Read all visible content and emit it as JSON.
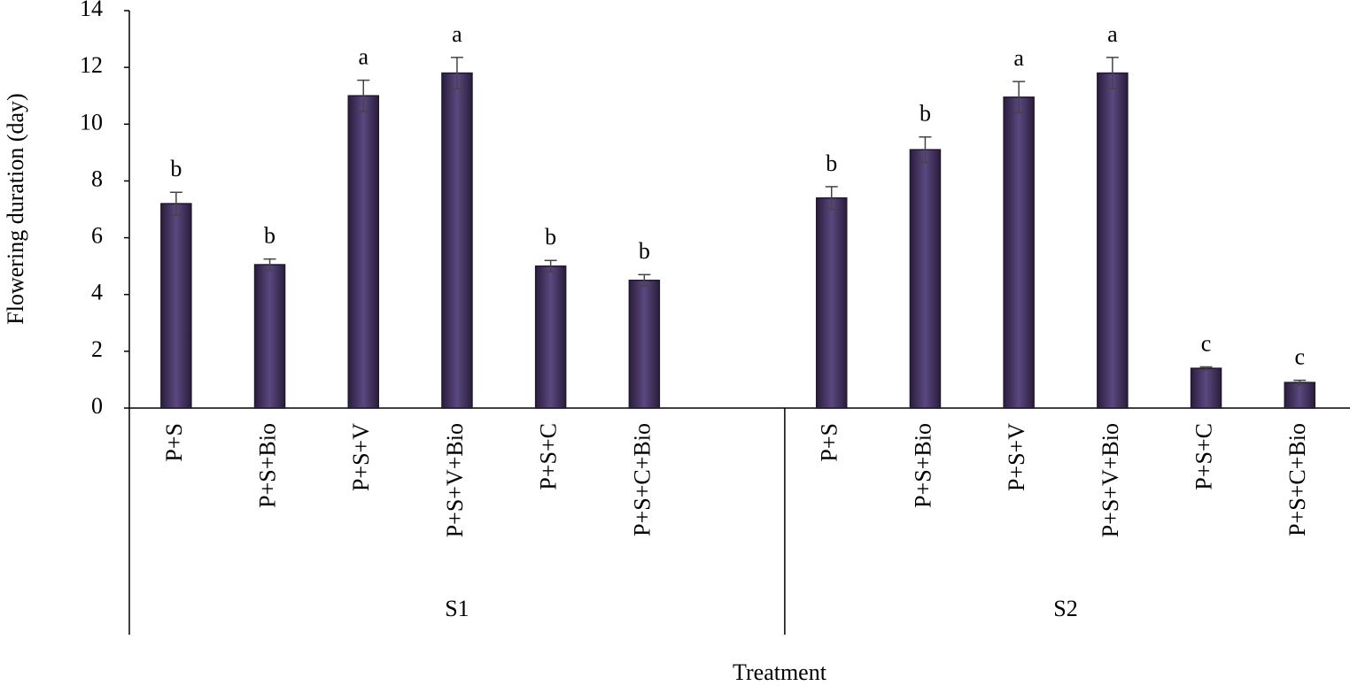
{
  "chart_data": {
    "type": "bar",
    "y_label": "Flowering duration (day)",
    "x_label": "Treatment",
    "ylim": [
      0,
      14
    ],
    "yticks": [
      0,
      2,
      4,
      6,
      8,
      10,
      12,
      14
    ],
    "color": "#4a3a68",
    "groups": [
      {
        "label": "S1",
        "categories": [
          "P+S",
          "P+S+Bio",
          "P+S+V",
          "P+S+V+Bio",
          "P+S+C",
          "P+S+C+Bio"
        ],
        "values": [
          7.2,
          5.05,
          11.0,
          11.8,
          5.0,
          4.5
        ],
        "errors": [
          0.4,
          0.2,
          0.55,
          0.55,
          0.2,
          0.2
        ],
        "annotations": [
          "b",
          "b",
          "a",
          "a",
          "b",
          "b"
        ]
      },
      {
        "label": "S2",
        "categories": [
          "P+S",
          "P+S+Bio",
          "P+S+V",
          "P+S+V+Bio",
          "P+S+C",
          "P+S+C+Bio"
        ],
        "values": [
          7.4,
          9.1,
          10.95,
          11.8,
          1.4,
          0.9
        ],
        "errors": [
          0.4,
          0.45,
          0.55,
          0.55,
          0.05,
          0.08
        ],
        "annotations": [
          "b",
          "b",
          "a",
          "a",
          "c",
          "c"
        ]
      }
    ]
  }
}
